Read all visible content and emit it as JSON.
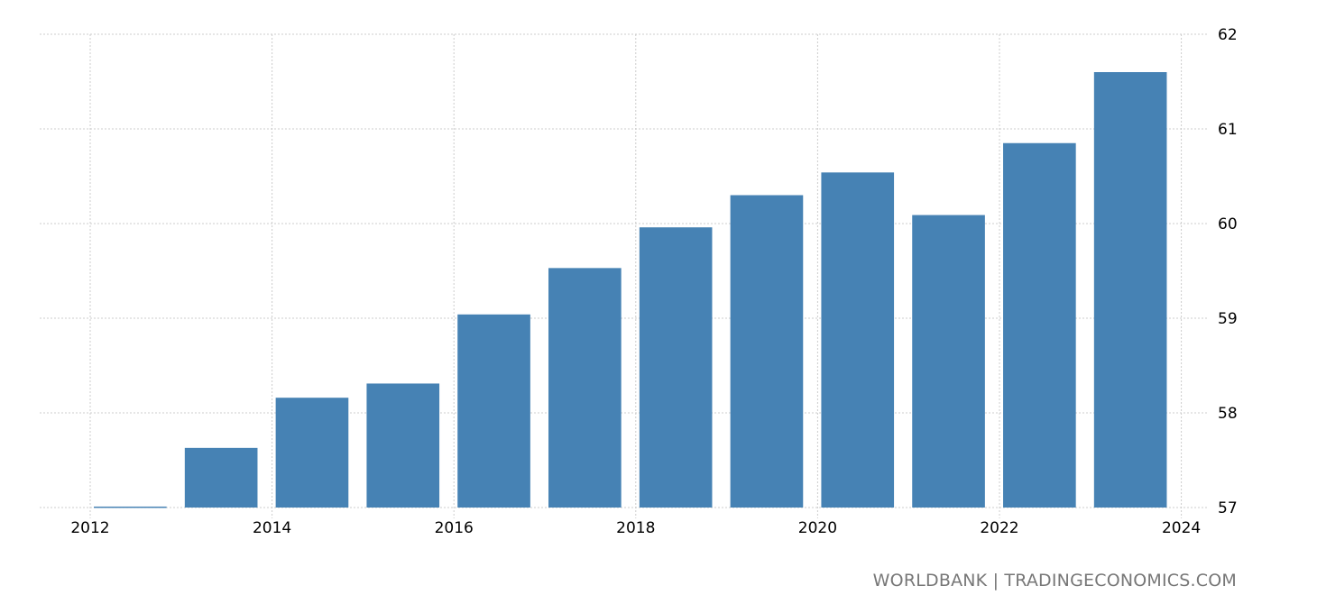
{
  "chart_data": {
    "type": "bar",
    "categories": [
      "2012",
      "2013",
      "2014",
      "2015",
      "2016",
      "2017",
      "2018",
      "2019",
      "2020",
      "2021",
      "2022",
      "2023"
    ],
    "values": [
      57.01,
      57.63,
      58.16,
      58.31,
      59.04,
      59.53,
      59.96,
      60.3,
      60.54,
      60.09,
      60.85,
      61.6
    ],
    "ylim": [
      57,
      62
    ],
    "yticks": [
      "57",
      "58",
      "59",
      "60",
      "61",
      "62"
    ],
    "xticks": [
      "2012",
      "2014",
      "2016",
      "2018",
      "2020",
      "2022",
      "2024"
    ],
    "xlim": [
      2012,
      2024
    ],
    "y_axis_position": "right",
    "grid": true,
    "bar_color": "#4682b4"
  },
  "source": "WORLDBANK | TRADINGECONOMICS.COM"
}
